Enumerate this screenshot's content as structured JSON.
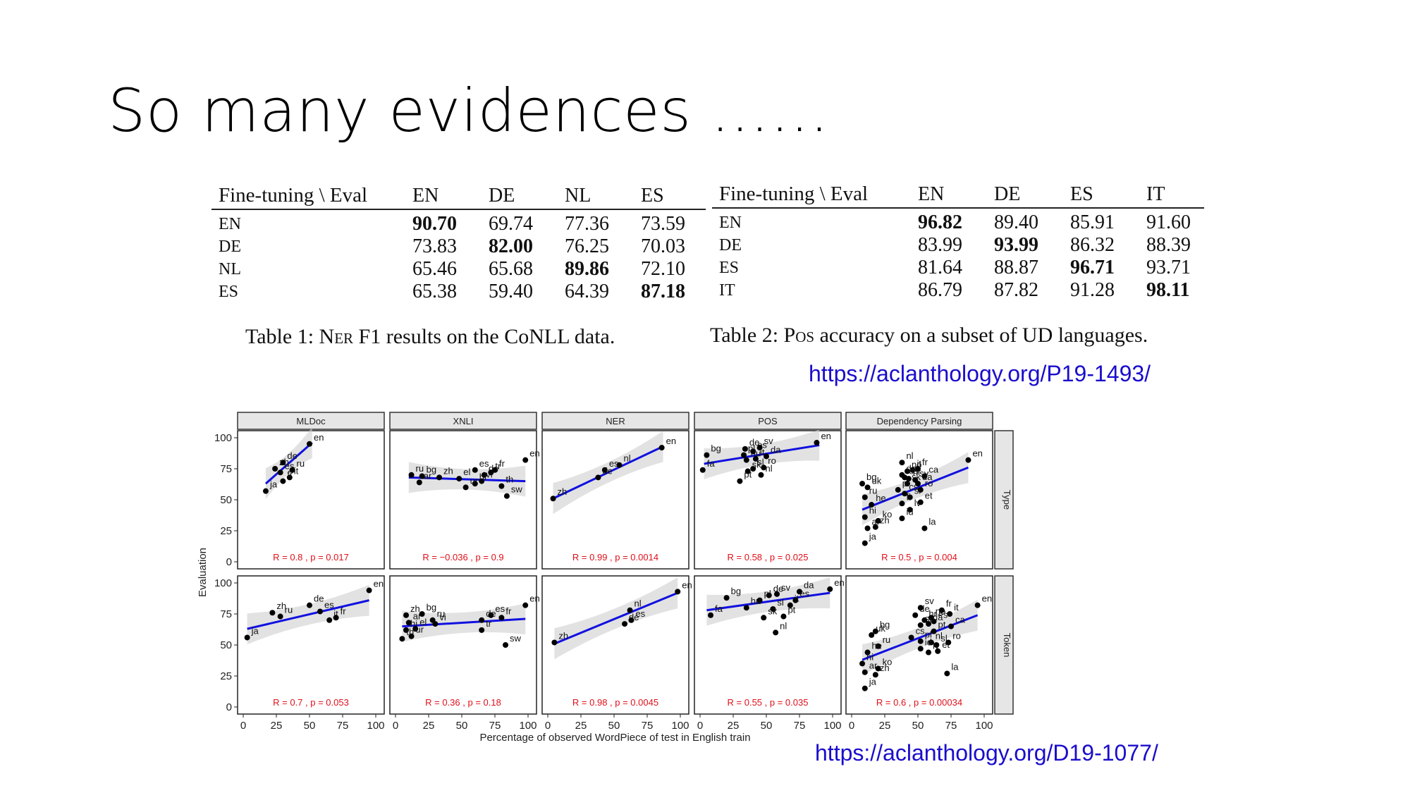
{
  "slide": {
    "title": "So many evidences ……",
    "link1": "https://aclanthology.org/P19-1493/",
    "link2": "https://aclanthology.org/D19-1077/"
  },
  "table1": {
    "header": [
      "Fine-tuning \\ Eval",
      "EN",
      "DE",
      "NL",
      "ES"
    ],
    "rows": [
      [
        "EN",
        "90.70",
        "69.74",
        "77.36",
        "73.59"
      ],
      [
        "DE",
        "73.83",
        "82.00",
        "76.25",
        "70.03"
      ],
      [
        "NL",
        "65.46",
        "65.68",
        "89.86",
        "72.10"
      ],
      [
        "ES",
        "65.38",
        "59.40",
        "64.39",
        "87.18"
      ]
    ],
    "caption_pre": "Table 1: ",
    "caption_sc": "Ner",
    "caption_post": " F1 results on the CoNLL data."
  },
  "table2": {
    "header": [
      "Fine-tuning \\ Eval",
      "EN",
      "DE",
      "ES",
      "IT"
    ],
    "rows": [
      [
        "EN",
        "96.82",
        "89.40",
        "85.91",
        "91.60"
      ],
      [
        "DE",
        "83.99",
        "93.99",
        "86.32",
        "88.39"
      ],
      [
        "ES",
        "81.64",
        "88.87",
        "96.71",
        "93.71"
      ],
      [
        "IT",
        "86.79",
        "87.82",
        "91.28",
        "98.11"
      ]
    ],
    "caption_pre": "Table 2: ",
    "caption_sc": "Pos",
    "caption_post": " accuracy on a subset of UD languages."
  },
  "chart_data": {
    "type": "scatter",
    "layout": "facet grid 2 rows x 5 columns",
    "columns": [
      "MLDoc",
      "XNLI",
      "NER",
      "POS",
      "Dependency Parsing"
    ],
    "rows": [
      "Type",
      "Token"
    ],
    "xlabel": "Percentage of observed WordPiece of test in English train",
    "ylabel": "Evaluation",
    "xlim": [
      0,
      100
    ],
    "ylim": [
      0,
      100
    ],
    "xticks": [
      "0",
      "25",
      "50",
      "75",
      "100"
    ],
    "yticks": [
      "0",
      "25",
      "50",
      "75",
      "100"
    ],
    "point_color": "#000000",
    "fit_color": "#1010e0",
    "stat_color": "#e0101a",
    "panels": [
      {
        "row": "Type",
        "col": "MLDoc",
        "stat": "R = 0.8 , p = 0.017",
        "fit": [
          [
            17,
            63
          ],
          [
            52,
            96
          ]
        ],
        "points": [
          {
            "l": "en",
            "x": 50,
            "y": 95
          },
          {
            "l": "zh",
            "x": 24,
            "y": 75
          },
          {
            "l": "de",
            "x": 30,
            "y": 80
          },
          {
            "l": "es",
            "x": 28,
            "y": 72
          },
          {
            "l": "ru",
            "x": 37,
            "y": 74
          },
          {
            "l": "it",
            "x": 35,
            "y": 68
          },
          {
            "l": "fr",
            "x": 30,
            "y": 65
          },
          {
            "l": "ja",
            "x": 17,
            "y": 57
          }
        ]
      },
      {
        "row": "Type",
        "col": "XNLI",
        "stat": "R = −0.036 , p = 0.9",
        "fit": [
          [
            10,
            68
          ],
          [
            98,
            65
          ]
        ],
        "points": [
          {
            "l": "ru",
            "x": 12,
            "y": 70
          },
          {
            "l": "bg",
            "x": 20,
            "y": 69
          },
          {
            "l": "ar",
            "x": 18,
            "y": 64
          },
          {
            "l": "zh",
            "x": 33,
            "y": 68
          },
          {
            "l": "el",
            "x": 48,
            "y": 67
          },
          {
            "l": "es",
            "x": 60,
            "y": 74
          },
          {
            "l": "de",
            "x": 67,
            "y": 70
          },
          {
            "l": "fr",
            "x": 75,
            "y": 74
          },
          {
            "l": "tr",
            "x": 72,
            "y": 72
          },
          {
            "l": "vi",
            "x": 65,
            "y": 65
          },
          {
            "l": "hi",
            "x": 60,
            "y": 63
          },
          {
            "l": "ur",
            "x": 53,
            "y": 60
          },
          {
            "l": "th",
            "x": 80,
            "y": 61
          },
          {
            "l": "sw",
            "x": 84,
            "y": 53
          },
          {
            "l": "en",
            "x": 98,
            "y": 82
          }
        ]
      },
      {
        "row": "Type",
        "col": "NER",
        "stat": "R = 0.99 , p = 0.0014",
        "fit": [
          [
            4,
            51
          ],
          [
            87,
            93
          ]
        ],
        "points": [
          {
            "l": "en",
            "x": 86,
            "y": 92
          },
          {
            "l": "nl",
            "x": 54,
            "y": 78
          },
          {
            "l": "es",
            "x": 43,
            "y": 74
          },
          {
            "l": "de",
            "x": 38,
            "y": 68
          },
          {
            "l": "zh",
            "x": 4,
            "y": 51
          }
        ]
      },
      {
        "row": "Type",
        "col": "POS",
        "stat": "R = 0.58 , p = 0.025",
        "fit": [
          [
            3,
            79
          ],
          [
            90,
            94
          ]
        ],
        "points": [
          {
            "l": "en",
            "x": 88,
            "y": 96
          },
          {
            "l": "de",
            "x": 34,
            "y": 91
          },
          {
            "l": "es",
            "x": 40,
            "y": 89
          },
          {
            "l": "sv",
            "x": 45,
            "y": 92
          },
          {
            "l": "da",
            "x": 50,
            "y": 85
          },
          {
            "l": "pl",
            "x": 33,
            "y": 86
          },
          {
            "l": "bg",
            "x": 5,
            "y": 86
          },
          {
            "l": "hu",
            "x": 35,
            "y": 82
          },
          {
            "l": "it",
            "x": 42,
            "y": 83
          },
          {
            "l": "ro",
            "x": 48,
            "y": 76
          },
          {
            "l": "nl",
            "x": 46,
            "y": 70
          },
          {
            "l": "sl",
            "x": 40,
            "y": 75
          },
          {
            "l": "sk",
            "x": 36,
            "y": 73
          },
          {
            "l": "pt",
            "x": 30,
            "y": 65
          },
          {
            "l": "fa",
            "x": 2,
            "y": 74
          }
        ]
      },
      {
        "row": "Type",
        "col": "Dependency Parsing",
        "stat": "R = 0.5 , p = 0.004",
        "fit": [
          [
            8,
            42
          ],
          [
            88,
            76
          ]
        ],
        "points": [
          {
            "l": "en",
            "x": 88,
            "y": 82
          },
          {
            "l": "nl",
            "x": 38,
            "y": 80
          },
          {
            "l": "no",
            "x": 42,
            "y": 73
          },
          {
            "l": "it",
            "x": 46,
            "y": 74
          },
          {
            "l": "fr",
            "x": 50,
            "y": 75
          },
          {
            "l": "de",
            "x": 38,
            "y": 70
          },
          {
            "l": "es",
            "x": 40,
            "y": 68
          },
          {
            "l": "hr",
            "x": 43,
            "y": 67
          },
          {
            "l": "sv",
            "x": 48,
            "y": 66
          },
          {
            "l": "ca",
            "x": 55,
            "y": 69
          },
          {
            "l": "sk",
            "x": 42,
            "y": 63
          },
          {
            "l": "da",
            "x": 50,
            "y": 63
          },
          {
            "l": "bg",
            "x": 8,
            "y": 63
          },
          {
            "l": "uk",
            "x": 12,
            "y": 60
          },
          {
            "l": "pl",
            "x": 35,
            "y": 58
          },
          {
            "l": "ro",
            "x": 52,
            "y": 58
          },
          {
            "l": "ru",
            "x": 10,
            "y": 52
          },
          {
            "l": "cs",
            "x": 40,
            "y": 55
          },
          {
            "l": "sl",
            "x": 44,
            "y": 52
          },
          {
            "l": "he",
            "x": 15,
            "y": 46
          },
          {
            "l": "fi",
            "x": 38,
            "y": 47
          },
          {
            "l": "et",
            "x": 52,
            "y": 48
          },
          {
            "l": "lv",
            "x": 44,
            "y": 42
          },
          {
            "l": "hi",
            "x": 10,
            "y": 36
          },
          {
            "l": "ko",
            "x": 20,
            "y": 33
          },
          {
            "l": "id",
            "x": 38,
            "y": 35
          },
          {
            "l": "ar",
            "x": 12,
            "y": 27
          },
          {
            "l": "zh",
            "x": 18,
            "y": 28
          },
          {
            "l": "la",
            "x": 55,
            "y": 27
          },
          {
            "l": "ja",
            "x": 10,
            "y": 15
          }
        ]
      },
      {
        "row": "Token",
        "col": "MLDoc",
        "stat": "R = 0.7 , p = 0.053",
        "fit": [
          [
            3,
            63
          ],
          [
            95,
            86
          ]
        ],
        "points": [
          {
            "l": "en",
            "x": 95,
            "y": 94
          },
          {
            "l": "zh",
            "x": 22,
            "y": 76
          },
          {
            "l": "de",
            "x": 50,
            "y": 82
          },
          {
            "l": "es",
            "x": 58,
            "y": 77
          },
          {
            "l": "ru",
            "x": 28,
            "y": 73
          },
          {
            "l": "it",
            "x": 65,
            "y": 70
          },
          {
            "l": "fr",
            "x": 70,
            "y": 72
          },
          {
            "l": "ja",
            "x": 3,
            "y": 56
          }
        ]
      },
      {
        "row": "Token",
        "col": "XNLI",
        "stat": "R = 0.36 , p = 0.18",
        "fit": [
          [
            5,
            65
          ],
          [
            98,
            71
          ]
        ],
        "points": [
          {
            "l": "zh",
            "x": 8,
            "y": 74
          },
          {
            "l": "bg",
            "x": 20,
            "y": 75
          },
          {
            "l": "ar",
            "x": 10,
            "y": 68
          },
          {
            "l": "ru",
            "x": 28,
            "y": 70
          },
          {
            "l": "hi",
            "x": 8,
            "y": 62
          },
          {
            "l": "el",
            "x": 15,
            "y": 63
          },
          {
            "l": "vi",
            "x": 30,
            "y": 67
          },
          {
            "l": "th",
            "x": 5,
            "y": 55
          },
          {
            "l": "ur",
            "x": 12,
            "y": 57
          },
          {
            "l": "es",
            "x": 72,
            "y": 74
          },
          {
            "l": "de",
            "x": 65,
            "y": 70
          },
          {
            "l": "fr",
            "x": 80,
            "y": 72
          },
          {
            "l": "tr",
            "x": 65,
            "y": 62
          },
          {
            "l": "sw",
            "x": 83,
            "y": 50
          },
          {
            "l": "en",
            "x": 98,
            "y": 82
          }
        ]
      },
      {
        "row": "Token",
        "col": "NER",
        "stat": "R = 0.98 , p = 0.0045",
        "fit": [
          [
            5,
            51
          ],
          [
            98,
            92
          ]
        ],
        "points": [
          {
            "l": "en",
            "x": 98,
            "y": 93
          },
          {
            "l": "nl",
            "x": 62,
            "y": 78
          },
          {
            "l": "es",
            "x": 63,
            "y": 70
          },
          {
            "l": "de",
            "x": 58,
            "y": 67
          },
          {
            "l": "zh",
            "x": 5,
            "y": 52
          }
        ]
      },
      {
        "row": "Token",
        "col": "POS",
        "stat": "R = 0.55 , p = 0.035",
        "fit": [
          [
            5,
            78
          ],
          [
            98,
            92
          ]
        ],
        "points": [
          {
            "l": "en",
            "x": 98,
            "y": 95
          },
          {
            "l": "de",
            "x": 52,
            "y": 90
          },
          {
            "l": "sv",
            "x": 58,
            "y": 91
          },
          {
            "l": "da",
            "x": 75,
            "y": 93
          },
          {
            "l": "bg",
            "x": 20,
            "y": 88
          },
          {
            "l": "pl",
            "x": 45,
            "y": 86
          },
          {
            "l": "es",
            "x": 72,
            "y": 86
          },
          {
            "l": "fa",
            "x": 8,
            "y": 74
          },
          {
            "l": "hu",
            "x": 35,
            "y": 80
          },
          {
            "l": "sl",
            "x": 55,
            "y": 79
          },
          {
            "l": "it",
            "x": 68,
            "y": 82
          },
          {
            "l": "sk",
            "x": 48,
            "y": 72
          },
          {
            "l": "pt",
            "x": 63,
            "y": 73
          },
          {
            "l": "nl",
            "x": 57,
            "y": 60
          }
        ]
      },
      {
        "row": "Token",
        "col": "Dependency Parsing",
        "stat": "R = 0.6 , p = 0.00034",
        "fit": [
          [
            8,
            38
          ],
          [
            95,
            74
          ]
        ],
        "points": [
          {
            "l": "en",
            "x": 95,
            "y": 82
          },
          {
            "l": "sv",
            "x": 52,
            "y": 80
          },
          {
            "l": "fr",
            "x": 68,
            "y": 78
          },
          {
            "l": "de",
            "x": 48,
            "y": 74
          },
          {
            "l": "no",
            "x": 60,
            "y": 72
          },
          {
            "l": "it",
            "x": 74,
            "y": 75
          },
          {
            "l": "hr",
            "x": 55,
            "y": 70
          },
          {
            "l": "es",
            "x": 62,
            "y": 69
          },
          {
            "l": "sk",
            "x": 52,
            "y": 66
          },
          {
            "l": "da",
            "x": 58,
            "y": 67
          },
          {
            "l": "ca",
            "x": 75,
            "y": 65
          },
          {
            "l": "pt",
            "x": 62,
            "y": 61
          },
          {
            "l": "bg",
            "x": 18,
            "y": 61
          },
          {
            "l": "uk",
            "x": 15,
            "y": 58
          },
          {
            "l": "cs",
            "x": 45,
            "y": 56
          },
          {
            "l": "pl",
            "x": 52,
            "y": 53
          },
          {
            "l": "nl",
            "x": 60,
            "y": 52
          },
          {
            "l": "sl",
            "x": 64,
            "y": 50
          },
          {
            "l": "ro",
            "x": 73,
            "y": 52
          },
          {
            "l": "ru",
            "x": 20,
            "y": 49
          },
          {
            "l": "he",
            "x": 12,
            "y": 44
          },
          {
            "l": "id",
            "x": 52,
            "y": 47
          },
          {
            "l": "lv",
            "x": 58,
            "y": 44
          },
          {
            "l": "et",
            "x": 65,
            "y": 45
          },
          {
            "l": "hi",
            "x": 8,
            "y": 35
          },
          {
            "l": "ko",
            "x": 20,
            "y": 31
          },
          {
            "l": "ar",
            "x": 10,
            "y": 28
          },
          {
            "l": "zh",
            "x": 18,
            "y": 26
          },
          {
            "l": "la",
            "x": 72,
            "y": 27
          },
          {
            "l": "ja",
            "x": 10,
            "y": 15
          }
        ]
      }
    ]
  }
}
